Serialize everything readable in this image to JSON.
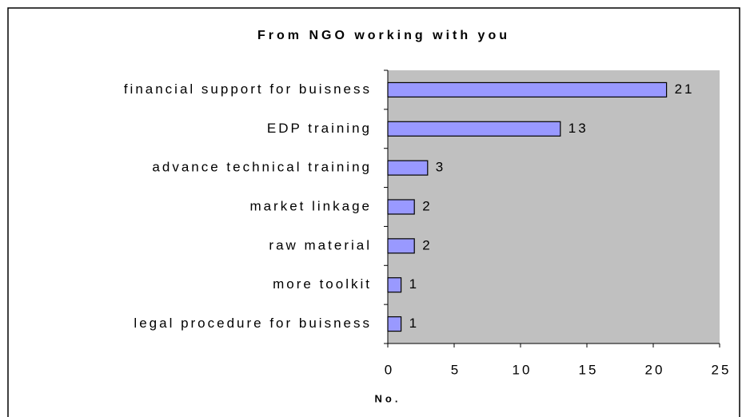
{
  "chart_data": {
    "type": "barh",
    "title": "From NGO working with you",
    "categories": [
      "financial support for buisness",
      "EDP training",
      "advance technical training",
      "market linkage",
      "raw material",
      "more toolkit",
      "legal procedure for buisness"
    ],
    "values": [
      21,
      13,
      3,
      2,
      2,
      1,
      1
    ],
    "color": "#9999ff",
    "plot_background": "#c0c0c0",
    "xlabel": "No.",
    "xlim": [
      0,
      25
    ],
    "xticks": [
      0,
      5,
      10,
      15,
      20,
      25
    ]
  }
}
